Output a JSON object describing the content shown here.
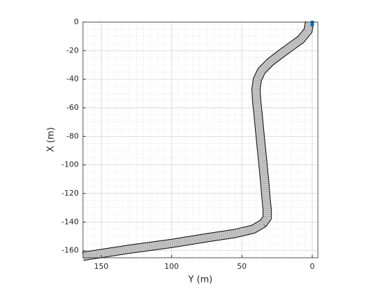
{
  "chart_data": {
    "type": "line",
    "xlabel": "Y (m)",
    "ylabel": "X (m)",
    "xlim": [
      163,
      -4
    ],
    "xticks": [
      150,
      100,
      50,
      0
    ],
    "ylim": [
      0,
      -165
    ],
    "yticks": [
      0,
      -20,
      -40,
      -60,
      -80,
      -100,
      -120,
      -140,
      -160
    ],
    "grid": true,
    "minor_grid": true,
    "series": [
      {
        "color": "#c8c8c8",
        "x": [
          2,
          3,
          8,
          15,
          22,
          30,
          36,
          39,
          40,
          39.5,
          38.5,
          37,
          35.5,
          34,
          33,
          32,
          32,
          35,
          42,
          55,
          75,
          100,
          130,
          163
        ],
        "values": [
          0,
          -6,
          -12,
          -17,
          -22,
          -28,
          -34,
          -40,
          -47,
          -55,
          -65,
          -80,
          -95,
          -110,
          -122,
          -132,
          -137,
          -141,
          -145,
          -148,
          -151,
          -155,
          -159,
          -164
        ]
      },
      {
        "color": "#0072bd",
        "x": [
          0
        ],
        "values": [
          -1
        ]
      }
    ]
  }
}
